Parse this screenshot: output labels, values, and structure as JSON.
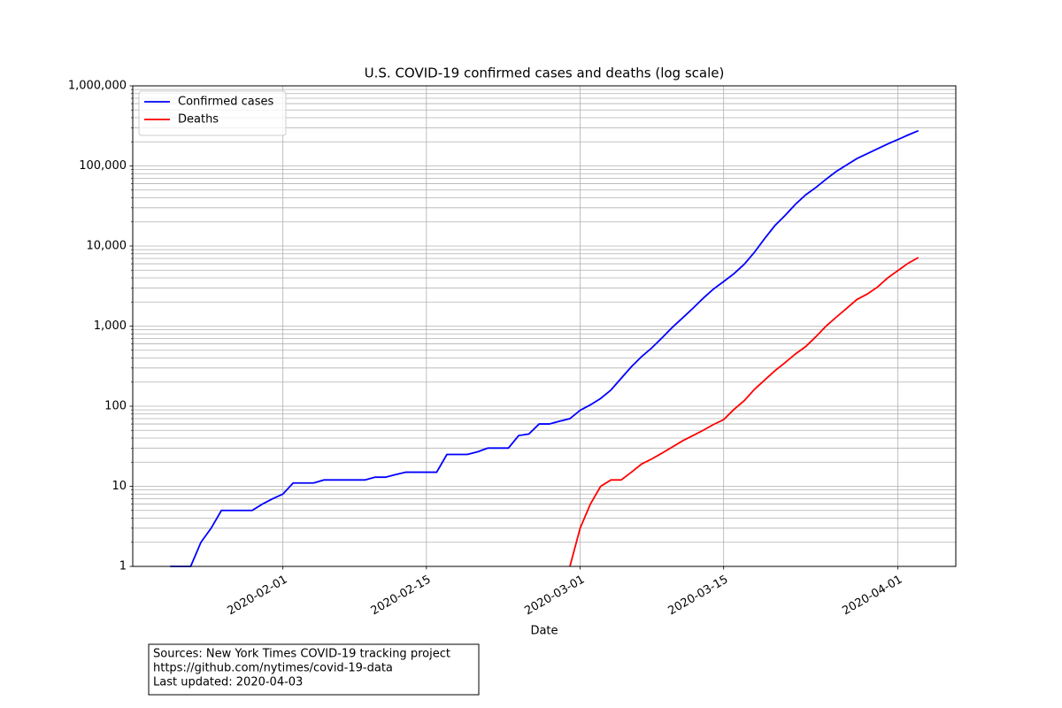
{
  "chart_data": {
    "type": "line",
    "title": "U.S. COVID-19 confirmed cases and deaths (log scale)",
    "xlabel": "Date",
    "annotation": [
      "Sources: New York Times COVID-19 tracking project",
      "https://github.com/nytimes/covid-19-data",
      "Last updated: 2020-04-03"
    ],
    "x": [
      "2020-01-21",
      "2020-01-22",
      "2020-01-23",
      "2020-01-24",
      "2020-01-25",
      "2020-01-26",
      "2020-01-27",
      "2020-01-28",
      "2020-01-29",
      "2020-01-30",
      "2020-01-31",
      "2020-02-01",
      "2020-02-02",
      "2020-02-03",
      "2020-02-04",
      "2020-02-05",
      "2020-02-06",
      "2020-02-07",
      "2020-02-08",
      "2020-02-09",
      "2020-02-10",
      "2020-02-11",
      "2020-02-12",
      "2020-02-13",
      "2020-02-14",
      "2020-02-15",
      "2020-02-16",
      "2020-02-17",
      "2020-02-18",
      "2020-02-19",
      "2020-02-20",
      "2020-02-21",
      "2020-02-22",
      "2020-02-23",
      "2020-02-24",
      "2020-02-25",
      "2020-02-26",
      "2020-02-27",
      "2020-02-28",
      "2020-02-29",
      "2020-03-01",
      "2020-03-02",
      "2020-03-03",
      "2020-03-04",
      "2020-03-05",
      "2020-03-06",
      "2020-03-07",
      "2020-03-08",
      "2020-03-09",
      "2020-03-10",
      "2020-03-11",
      "2020-03-12",
      "2020-03-13",
      "2020-03-14",
      "2020-03-15",
      "2020-03-16",
      "2020-03-17",
      "2020-03-18",
      "2020-03-19",
      "2020-03-20",
      "2020-03-21",
      "2020-03-22",
      "2020-03-23",
      "2020-03-24",
      "2020-03-25",
      "2020-03-26",
      "2020-03-27",
      "2020-03-28",
      "2020-03-29",
      "2020-03-30",
      "2020-03-31",
      "2020-04-01",
      "2020-04-02",
      "2020-04-03"
    ],
    "series": [
      {
        "name": "Confirmed cases",
        "color": "#0000ff",
        "values": [
          1,
          1,
          1,
          2,
          3,
          5,
          5,
          5,
          5,
          6,
          7,
          8,
          11,
          11,
          11,
          12,
          12,
          12,
          12,
          12,
          13,
          13,
          14,
          15,
          15,
          15,
          15,
          25,
          25,
          25,
          27,
          30,
          30,
          30,
          43,
          45,
          60,
          60,
          65,
          70,
          89,
          104,
          125,
          159,
          223,
          311,
          417,
          536,
          717,
          967,
          1267,
          1669,
          2225,
          2898,
          3600,
          4507,
          5905,
          8345,
          12391,
          17999,
          24149,
          33170,
          43505,
          53853,
          68440,
          85595,
          102863,
          123513,
          142068,
          163539,
          188172,
          213362,
          243616,
          275586
        ]
      },
      {
        "name": "Deaths",
        "color": "#ff0000",
        "values": [
          null,
          null,
          null,
          null,
          null,
          null,
          null,
          null,
          null,
          null,
          null,
          null,
          null,
          null,
          null,
          null,
          null,
          null,
          null,
          null,
          null,
          null,
          null,
          null,
          null,
          null,
          null,
          null,
          null,
          null,
          null,
          null,
          null,
          null,
          null,
          null,
          null,
          null,
          null,
          1,
          3,
          6,
          10,
          12,
          12,
          15,
          19,
          22,
          26,
          31,
          37,
          43,
          50,
          59,
          68,
          91,
          117,
          162,
          212,
          277,
          351,
          449,
          555,
          738,
          1002,
          1298,
          1667,
          2151,
          2511,
          3068,
          3993,
          4933,
          6097,
          7184
        ]
      }
    ],
    "xlim": [
      "2020-01-17T08:24:00",
      "2020-04-06T15:36:00"
    ],
    "xticks": [
      "2020-02-01",
      "2020-02-15",
      "2020-03-01",
      "2020-03-15",
      "2020-04-01"
    ],
    "ylim": [
      1,
      1000000
    ],
    "yticks": [
      1,
      10,
      100,
      {
        "value": 1000,
        "label": "1,000"
      },
      {
        "value": 10000,
        "label": "10,000"
      },
      {
        "value": 100000,
        "label": "100,000"
      },
      {
        "value": 1000000,
        "label": "1,000,000"
      }
    ],
    "yminorticks": [
      2,
      3,
      4,
      5,
      6,
      7,
      8,
      9,
      20,
      30,
      40,
      50,
      60,
      70,
      80,
      90,
      200,
      300,
      400,
      500,
      600,
      700,
      800,
      900,
      2000,
      3000,
      4000,
      5000,
      6000,
      7000,
      8000,
      9000,
      20000,
      30000,
      40000,
      50000,
      60000,
      70000,
      80000,
      90000,
      200000,
      300000,
      400000,
      500000,
      600000,
      700000,
      800000,
      900000
    ],
    "yscale": "log",
    "grid": true,
    "legend": "upper left"
  }
}
